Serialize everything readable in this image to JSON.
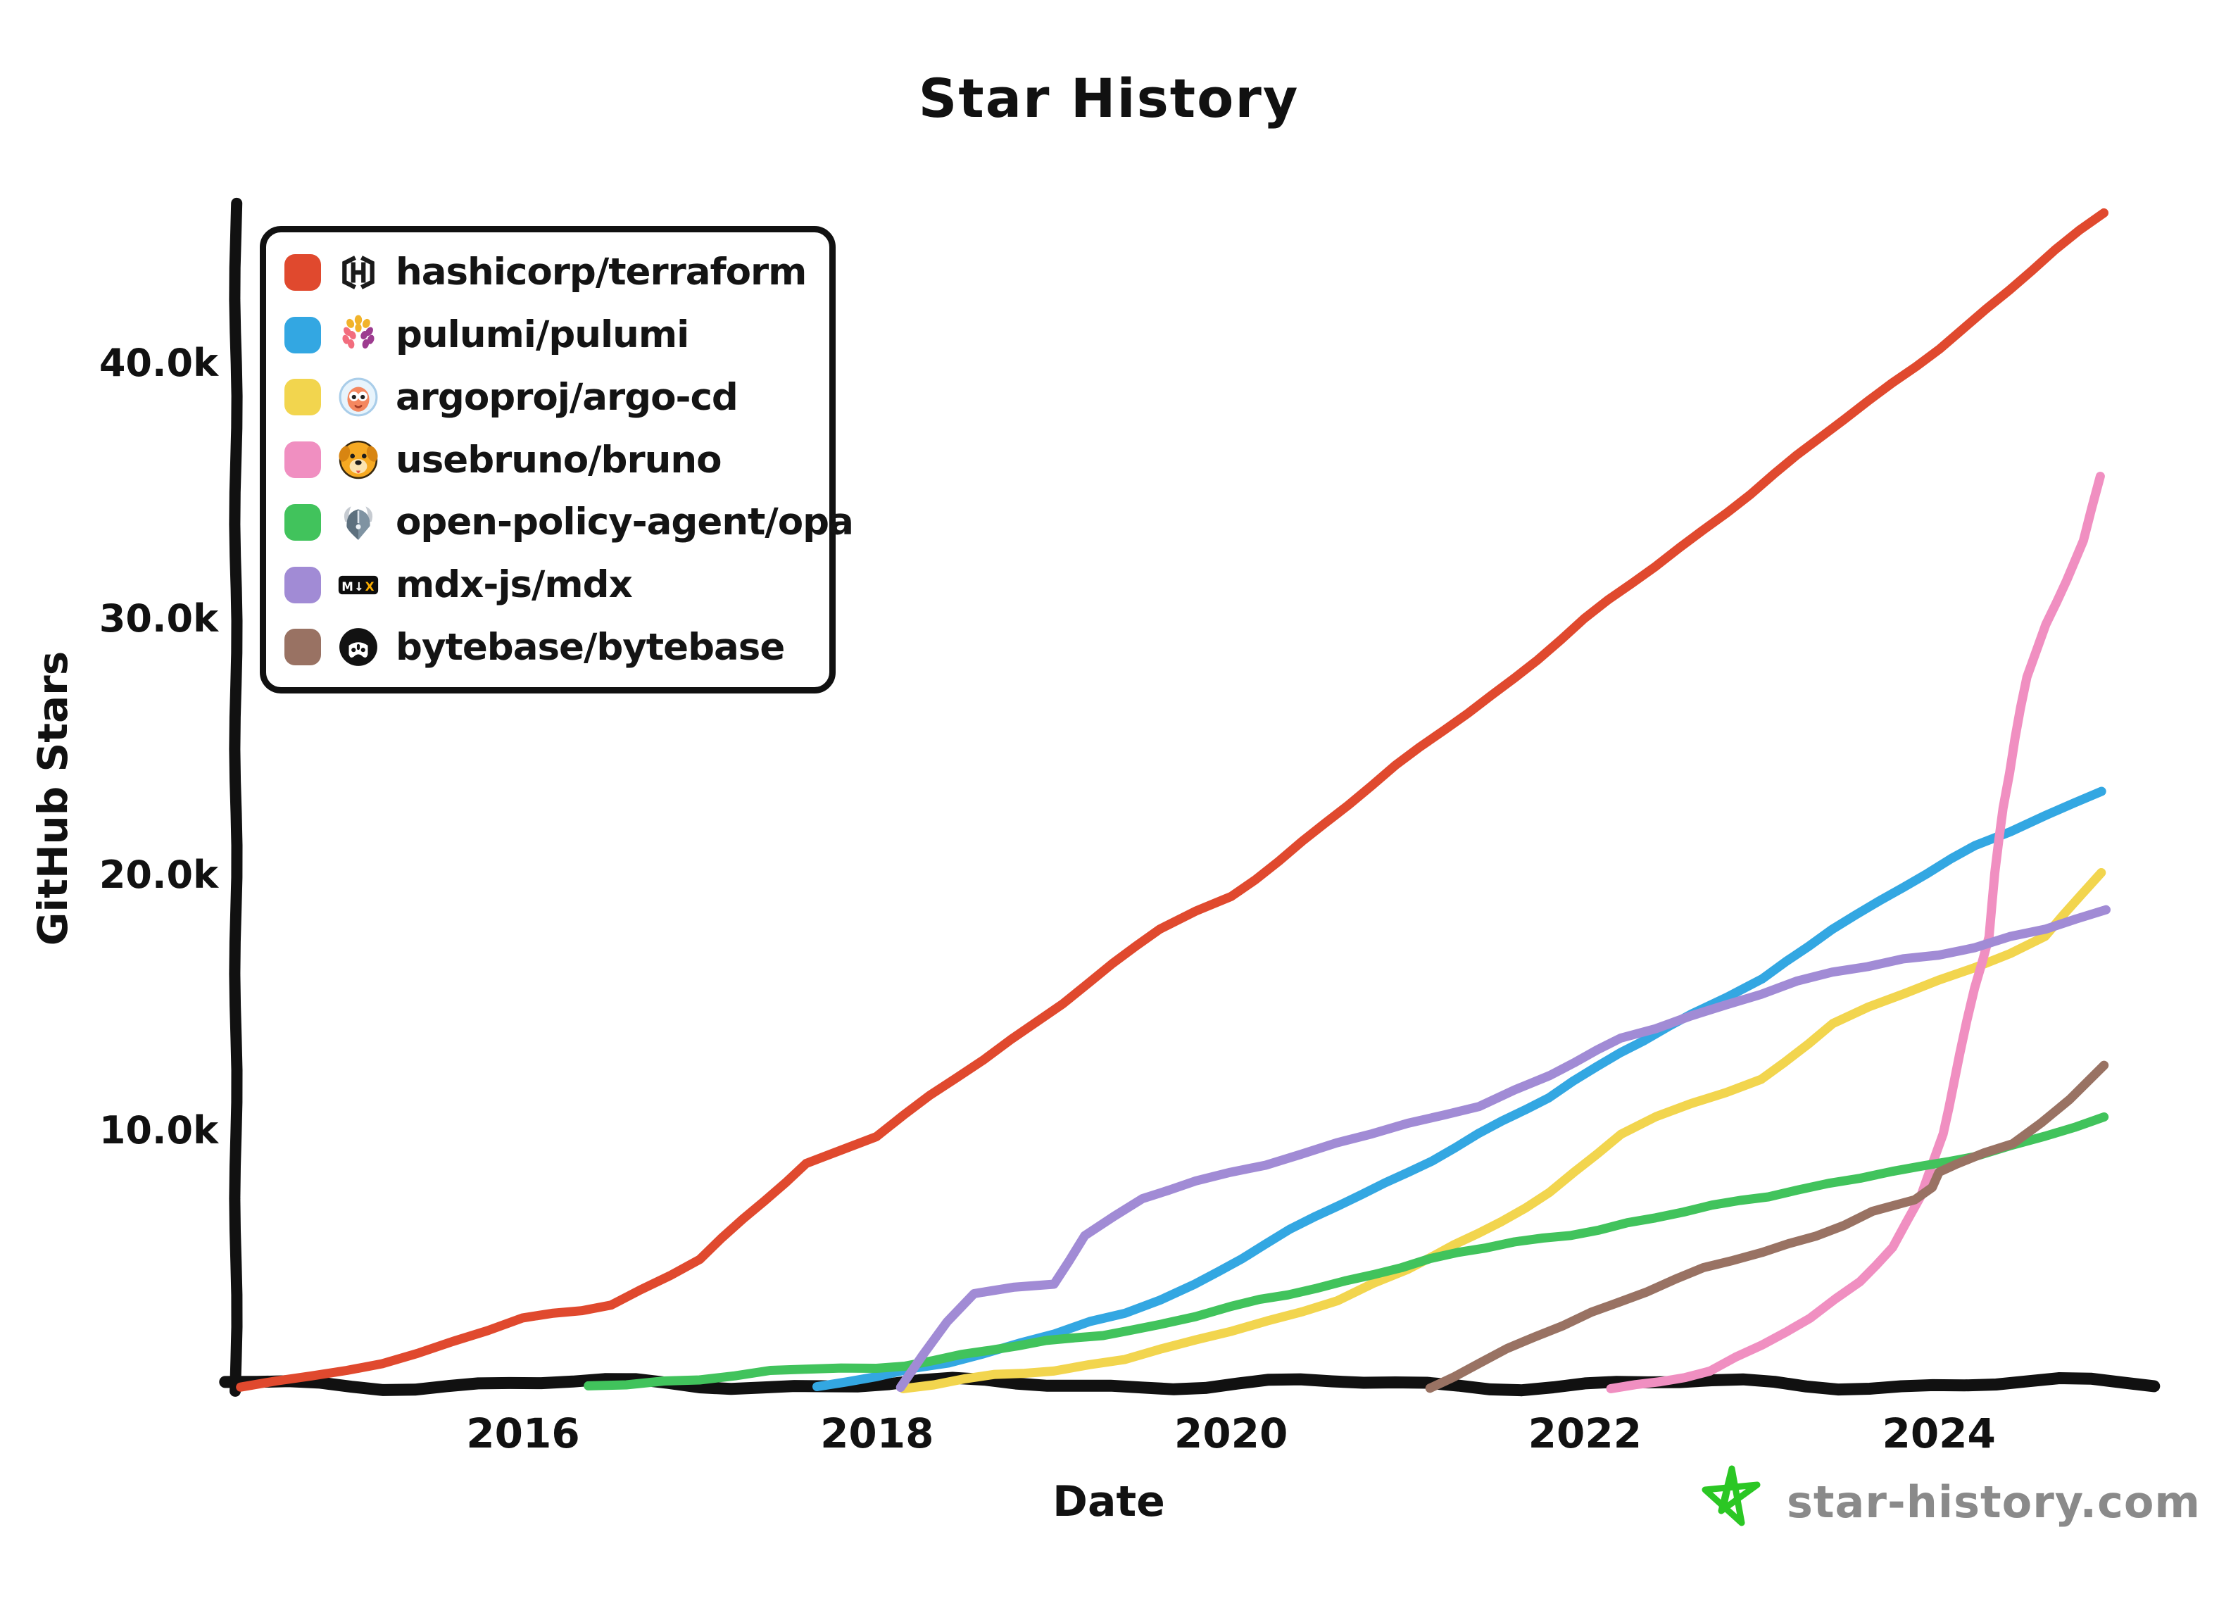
{
  "title": "Star History",
  "axes": {
    "x_label": "Date",
    "y_label": "GitHub Stars"
  },
  "footer": {
    "site": "star-history.com",
    "logo_icon": "star-outline-icon",
    "logo_color": "#2bc724",
    "text_color": "#8a8a8a"
  },
  "legend": [
    {
      "repo": "hashicorp/terraform",
      "color": "#e0492e",
      "icon": "terraform-icon"
    },
    {
      "repo": "pulumi/pulumi",
      "color": "#33a7e2",
      "icon": "pulumi-icon"
    },
    {
      "repo": "argoproj/argo-cd",
      "color": "#f2d54e",
      "icon": "argocd-icon"
    },
    {
      "repo": "usebruno/bruno",
      "color": "#f08fc1",
      "icon": "bruno-icon"
    },
    {
      "repo": "open-policy-agent/opa",
      "color": "#41c35c",
      "icon": "opa-icon"
    },
    {
      "repo": "mdx-js/mdx",
      "color": "#a18bd5",
      "icon": "mdx-icon"
    },
    {
      "repo": "bytebase/bytebase",
      "color": "#997263",
      "icon": "bytebase-icon"
    }
  ],
  "chart_data": {
    "type": "line",
    "title": "Star History",
    "xlabel": "Date",
    "ylabel": "GitHub Stars",
    "xlim": [
      2014.38,
      2025.2
    ],
    "ylim": [
      0,
      46500
    ],
    "grid": false,
    "legend_position": "top-left",
    "x_ticks": [
      {
        "value": 2016,
        "label": "2016"
      },
      {
        "value": 2018,
        "label": "2018"
      },
      {
        "value": 2020,
        "label": "2020"
      },
      {
        "value": 2022,
        "label": "2022"
      },
      {
        "value": 2024,
        "label": "2024"
      }
    ],
    "y_ticks": [
      {
        "value": 10000,
        "label": "10.0k"
      },
      {
        "value": 20000,
        "label": "20.0k"
      },
      {
        "value": 30000,
        "label": "30.0k"
      },
      {
        "value": 40000,
        "label": "40.0k"
      }
    ],
    "series": [
      {
        "name": "hashicorp/terraform",
        "color": "#e0492e",
        "points": [
          [
            2014.4,
            0
          ],
          [
            2015,
            650
          ],
          [
            2015.6,
            1800
          ],
          [
            2016,
            2650
          ],
          [
            2016.5,
            3300
          ],
          [
            2017,
            5000
          ],
          [
            2017.6,
            8800
          ],
          [
            2018,
            9900
          ],
          [
            2018.6,
            12800
          ],
          [
            2019.2,
            15900
          ],
          [
            2019.6,
            17900
          ],
          [
            2020,
            19200
          ],
          [
            2020.4,
            21400
          ],
          [
            2020.8,
            23500
          ],
          [
            2021.2,
            25700
          ],
          [
            2021.6,
            27800
          ],
          [
            2022,
            30000
          ],
          [
            2022.4,
            32100
          ],
          [
            2022.8,
            34300
          ],
          [
            2023.2,
            36400
          ],
          [
            2023.6,
            38500
          ],
          [
            2024,
            40700
          ],
          [
            2024.4,
            42900
          ],
          [
            2024.66,
            44400
          ],
          [
            2024.93,
            45900
          ]
        ]
      },
      {
        "name": "pulumi/pulumi",
        "color": "#33a7e2",
        "points": [
          [
            2017.66,
            0
          ],
          [
            2018,
            400
          ],
          [
            2018.6,
            1400
          ],
          [
            2019,
            2100
          ],
          [
            2019.4,
            2900
          ],
          [
            2019.8,
            4100
          ],
          [
            2020.2,
            5600
          ],
          [
            2020.6,
            7100
          ],
          [
            2021,
            8500
          ],
          [
            2021.4,
            9900
          ],
          [
            2021.8,
            11300
          ],
          [
            2022.2,
            13200
          ],
          [
            2022.6,
            14600
          ],
          [
            2023,
            15900
          ],
          [
            2023.4,
            18000
          ],
          [
            2023.8,
            19600
          ],
          [
            2024.2,
            21100
          ],
          [
            2024.6,
            22400
          ],
          [
            2024.92,
            23400
          ]
        ]
      },
      {
        "name": "argoproj/argo-cd",
        "color": "#f2d54e",
        "points": [
          [
            2018.15,
            0
          ],
          [
            2018.5,
            300
          ],
          [
            2019,
            700
          ],
          [
            2019.4,
            1200
          ],
          [
            2019.8,
            1800
          ],
          [
            2020.2,
            2600
          ],
          [
            2020.6,
            3500
          ],
          [
            2021,
            4600
          ],
          [
            2021.4,
            6000
          ],
          [
            2021.8,
            7700
          ],
          [
            2022.2,
            9900
          ],
          [
            2022.6,
            11100
          ],
          [
            2023,
            12100
          ],
          [
            2023.4,
            14200
          ],
          [
            2023.8,
            15400
          ],
          [
            2024.2,
            16500
          ],
          [
            2024.6,
            17600
          ],
          [
            2024.92,
            20100
          ]
        ]
      },
      {
        "name": "usebruno/bruno",
        "color": "#f08fc1",
        "points": [
          [
            2022.15,
            0
          ],
          [
            2022.43,
            300
          ],
          [
            2022.71,
            700
          ],
          [
            2023,
            1600
          ],
          [
            2023.27,
            2700
          ],
          [
            2023.55,
            4200
          ],
          [
            2023.74,
            5600
          ],
          [
            2023.9,
            7500
          ],
          [
            2024.02,
            9900
          ],
          [
            2024.12,
            13000
          ],
          [
            2024.2,
            15600
          ],
          [
            2024.28,
            17600
          ],
          [
            2024.36,
            22600
          ],
          [
            2024.43,
            25300
          ],
          [
            2024.5,
            27700
          ],
          [
            2024.6,
            29800
          ],
          [
            2024.72,
            31600
          ],
          [
            2024.82,
            33200
          ],
          [
            2024.91,
            35700
          ]
        ]
      },
      {
        "name": "open-policy-agent/opa",
        "color": "#41c35c",
        "points": [
          [
            2016.37,
            0
          ],
          [
            2016.8,
            300
          ],
          [
            2017.6,
            700
          ],
          [
            2018,
            800
          ],
          [
            2018.8,
            1600
          ],
          [
            2019.6,
            2500
          ],
          [
            2020,
            3100
          ],
          [
            2020.8,
            4500
          ],
          [
            2021.6,
            5700
          ],
          [
            2022.4,
            6600
          ],
          [
            2023.2,
            7800
          ],
          [
            2023.92,
            8600
          ],
          [
            2024.2,
            9100
          ],
          [
            2024.6,
            9900
          ],
          [
            2024.93,
            10500
          ]
        ]
      },
      {
        "name": "mdx-js/mdx",
        "color": "#a18bd5",
        "points": [
          [
            2018.13,
            0
          ],
          [
            2018.26,
            1200
          ],
          [
            2018.4,
            2500
          ],
          [
            2018.55,
            3700
          ],
          [
            2018.77,
            4000
          ],
          [
            2019,
            4100
          ],
          [
            2019.17,
            6000
          ],
          [
            2019.5,
            7300
          ],
          [
            2019.8,
            8100
          ],
          [
            2020.2,
            8800
          ],
          [
            2020.6,
            9500
          ],
          [
            2021,
            10300
          ],
          [
            2021.4,
            11100
          ],
          [
            2021.8,
            12200
          ],
          [
            2022.2,
            13600
          ],
          [
            2022.6,
            14600
          ],
          [
            2023,
            15400
          ],
          [
            2023.4,
            16200
          ],
          [
            2023.8,
            16800
          ],
          [
            2024.2,
            17200
          ],
          [
            2024.6,
            17900
          ],
          [
            2024.94,
            18700
          ]
        ]
      },
      {
        "name": "bytebase/bytebase",
        "color": "#997263",
        "points": [
          [
            2021.12,
            0
          ],
          [
            2021.4,
            900
          ],
          [
            2021.72,
            2000
          ],
          [
            2022.04,
            3000
          ],
          [
            2022.35,
            3800
          ],
          [
            2022.67,
            4600
          ],
          [
            2023,
            5300
          ],
          [
            2023.3,
            6000
          ],
          [
            2023.62,
            6900
          ],
          [
            2023.86,
            7300
          ],
          [
            2023.96,
            7800
          ],
          [
            2024,
            8400
          ],
          [
            2024.1,
            8700
          ],
          [
            2024.42,
            9600
          ],
          [
            2024.74,
            11300
          ],
          [
            2024.93,
            12600
          ]
        ]
      }
    ]
  }
}
